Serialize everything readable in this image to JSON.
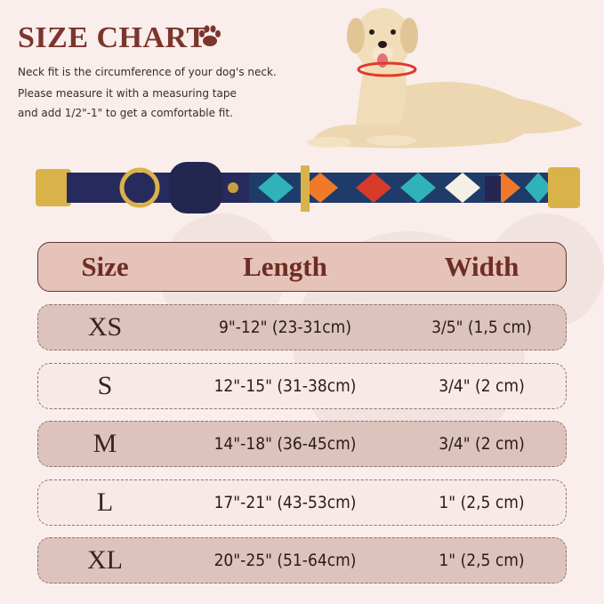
{
  "title": "SIZE CHART",
  "description": [
    "Neck fit is the circumference of your dog's neck.",
    "Please measure it with a measuring tape",
    " and add 1/2\"-1\" to get a comfortable fit."
  ],
  "icons": {
    "title_icon": "paw-icon"
  },
  "colors": {
    "title": "#7b352c",
    "header_bg": "#e5c3b9",
    "row_dark": "#dcc3bb",
    "row_light": "#f7e9e6",
    "background": "#f9eeec"
  },
  "table": {
    "headers": [
      "Size",
      "Length",
      "Width"
    ],
    "rows": [
      {
        "size": "XS",
        "length": "9\"-12\" (23-31cm)",
        "width": "3/5\" (1,5 cm)"
      },
      {
        "size": "S",
        "length": "12\"-15\" (31-38cm)",
        "width": "3/4\" (2 cm)"
      },
      {
        "size": "M",
        "length": "14\"-18\" (36-45cm)",
        "width": "3/4\" (2 cm)"
      },
      {
        "size": "L",
        "length": "17\"-21\" (43-53cm)",
        "width": "1\"  (2,5 cm)"
      },
      {
        "size": "XL",
        "length": "20\"-25\" (51-64cm)",
        "width": "1\"  (2,5 cm)"
      }
    ]
  }
}
